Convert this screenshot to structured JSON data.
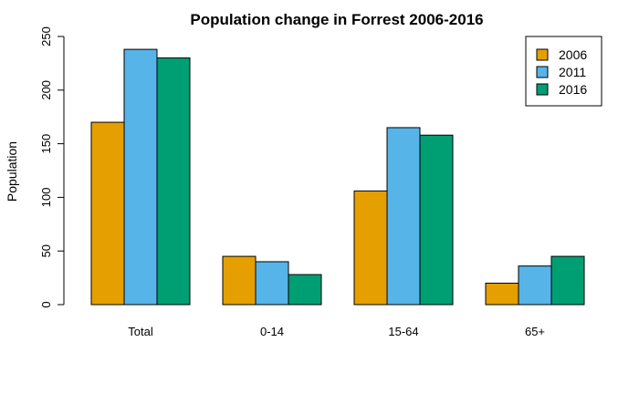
{
  "chart_data": {
    "type": "bar",
    "title": "Population change in Forrest 2006-2016",
    "xlabel": "",
    "ylabel": "Population",
    "categories": [
      "Total",
      "0-14",
      "15-64",
      "65+"
    ],
    "series": [
      {
        "name": "2006",
        "color": "#E69F00",
        "values": [
          170,
          45,
          106,
          20
        ]
      },
      {
        "name": "2011",
        "color": "#56B4E9",
        "values": [
          238,
          40,
          165,
          36
        ]
      },
      {
        "name": "2016",
        "color": "#009E73",
        "values": [
          230,
          28,
          158,
          45
        ]
      }
    ],
    "ylim": [
      0,
      250
    ],
    "yticks": [
      0,
      50,
      100,
      150,
      200,
      250
    ],
    "grid": false,
    "legend": "top-right"
  }
}
